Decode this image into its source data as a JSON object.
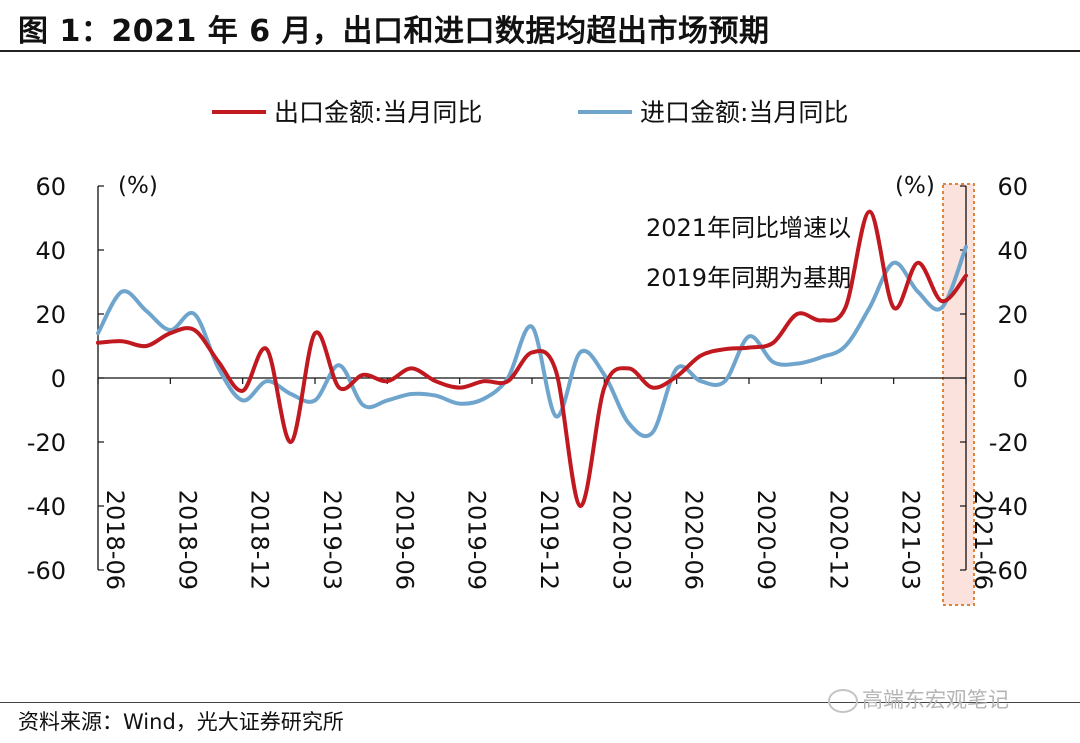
{
  "figure": {
    "title": "图 1：2021 年 6 月，出口和进口数据均超出市场预期",
    "source": "资料来源：Wind，光大证券研究所",
    "watermark": "高端东宏观笔记",
    "watermark_icon": "wechat-icon"
  },
  "chart_data": {
    "type": "line",
    "legend_position": "top-center",
    "grid": false,
    "left_axis": {
      "unit_label": "(%)",
      "ylim": [
        -60,
        60
      ],
      "ticks": [
        60,
        40,
        20,
        0,
        -20,
        -40,
        -60
      ]
    },
    "right_axis": {
      "unit_label": "(%)",
      "ylim": [
        -60,
        60
      ],
      "ticks": [
        60,
        40,
        20,
        0,
        -20,
        -40,
        -60
      ]
    },
    "x_tick_labels": [
      "2018-06",
      "2018-09",
      "2018-12",
      "2019-03",
      "2019-06",
      "2019-09",
      "2019-12",
      "2020-03",
      "2020-06",
      "2020-09",
      "2020-12",
      "2021-03",
      "2021-06"
    ],
    "x": [
      "2018-06",
      "2018-07",
      "2018-08",
      "2018-09",
      "2018-10",
      "2018-11",
      "2018-12",
      "2019-01",
      "2019-02",
      "2019-03",
      "2019-04",
      "2019-05",
      "2019-06",
      "2019-07",
      "2019-08",
      "2019-09",
      "2019-10",
      "2019-11",
      "2019-12",
      "2020-01",
      "2020-02",
      "2020-03",
      "2020-04",
      "2020-05",
      "2020-06",
      "2020-07",
      "2020-08",
      "2020-09",
      "2020-10",
      "2020-11",
      "2020-12",
      "2021-01",
      "2021-02",
      "2021-03",
      "2021-04",
      "2021-05",
      "2021-06"
    ],
    "series": [
      {
        "name": "出口金额:当月同比",
        "color": "#c0191f",
        "values": [
          11,
          11.5,
          10,
          14,
          15,
          5,
          -4,
          9,
          -20,
          14,
          -3,
          1,
          -1,
          3,
          -1,
          -3,
          -1,
          -1,
          8,
          2,
          -40,
          -3,
          3,
          -3,
          0.5,
          7,
          9,
          9.5,
          11,
          20,
          18,
          22,
          52,
          22,
          36,
          24,
          32
        ]
      },
      {
        "name": "进口金额:当月同比",
        "color": "#6fa5cd",
        "values": [
          14,
          27,
          21,
          15,
          20,
          3,
          -7,
          -1,
          -5,
          -7,
          4,
          -8.5,
          -7,
          -5,
          -5.5,
          -8,
          -6.5,
          0,
          16,
          -12,
          8,
          1,
          -14,
          -17,
          3,
          -1,
          -1,
          13,
          5,
          4.5,
          6.5,
          10,
          22,
          36,
          27,
          22,
          41
        ]
      }
    ],
    "annotation": {
      "lines": [
        "2021年同比增速以",
        "2019年同期为基期"
      ]
    }
  }
}
